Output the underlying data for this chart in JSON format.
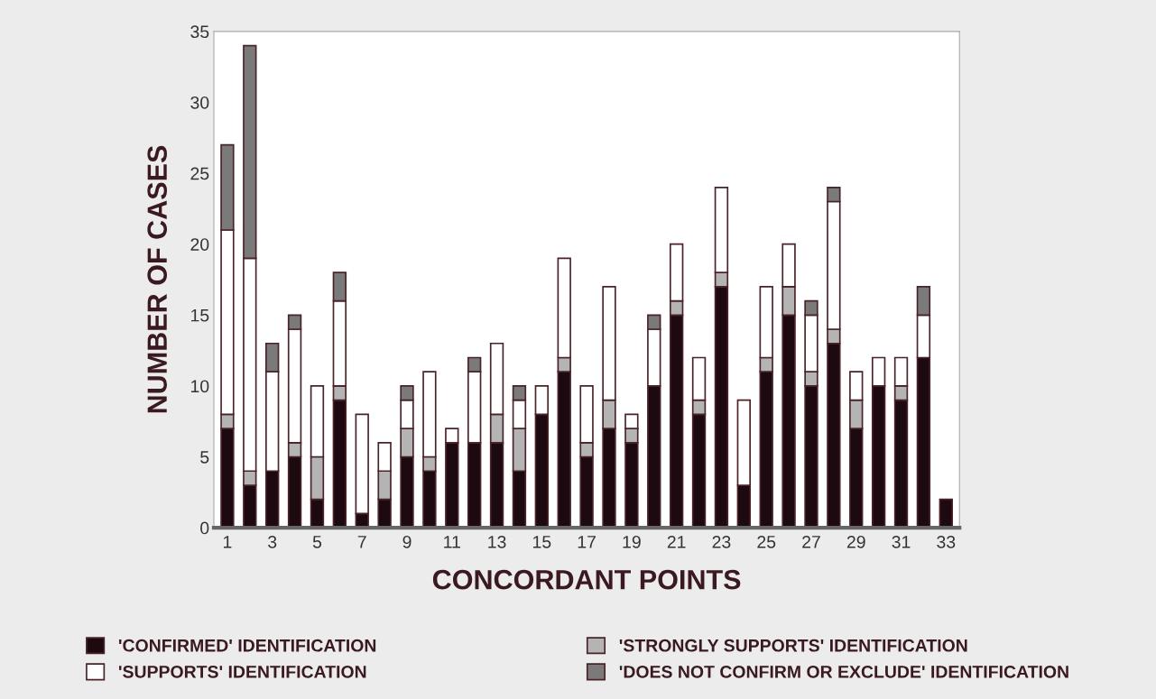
{
  "chart_data": {
    "type": "bar",
    "stacked": true,
    "xlabel": "CONCORDANT POINTS",
    "ylabel": "NUMBER OF CASES",
    "categories": [
      "1",
      null,
      "3",
      null,
      "5",
      null,
      "7",
      null,
      "9",
      null,
      "11",
      null,
      "13",
      null,
      "15",
      null,
      "17",
      null,
      "19",
      null,
      "21",
      null,
      "23",
      null,
      "25",
      null,
      "27",
      null,
      "29",
      null,
      "31",
      null,
      "33"
    ],
    "series": [
      {
        "name": "'CONFIRMED' IDENTIFICATION",
        "color": "#1c0a10",
        "values": [
          7,
          3,
          4,
          5,
          2,
          9,
          1,
          2,
          5,
          4,
          6,
          6,
          6,
          4,
          8,
          11,
          5,
          7,
          6,
          10,
          15,
          8,
          17,
          3,
          11,
          15,
          10,
          13,
          7,
          10,
          9,
          12,
          2
        ]
      },
      {
        "name": "'STRONGLY SUPPORTS' IDENTIFICATION",
        "color": "#b4b4b4",
        "values": [
          1,
          1,
          0,
          1,
          3,
          1,
          0,
          2,
          2,
          1,
          0,
          0,
          2,
          3,
          0,
          1,
          1,
          2,
          1,
          0,
          1,
          1,
          1,
          0,
          1,
          2,
          1,
          1,
          2,
          0,
          1,
          0,
          0
        ]
      },
      {
        "name": "'SUPPORTS' IDENTIFICATION",
        "color": "#ffffff",
        "values": [
          13,
          15,
          7,
          8,
          5,
          6,
          7,
          2,
          2,
          6,
          1,
          5,
          5,
          2,
          2,
          7,
          4,
          8,
          1,
          4,
          4,
          3,
          6,
          6,
          5,
          3,
          4,
          9,
          2,
          2,
          2,
          3,
          0
        ]
      },
      {
        "name": "'DOES NOT CONFIRM OR EXCLUDE' IDENTIFICATION",
        "color": "#7a7a7a",
        "values": [
          6,
          15,
          2,
          1,
          0,
          2,
          0,
          0,
          1,
          0,
          0,
          1,
          0,
          1,
          0,
          0,
          0,
          0,
          0,
          1,
          0,
          0,
          0,
          0,
          0,
          0,
          1,
          1,
          0,
          0,
          0,
          2,
          0
        ]
      }
    ],
    "ylim": [
      0,
      35
    ],
    "yticks": [
      0,
      5,
      10,
      15,
      20,
      25,
      30,
      35
    ],
    "grid": false,
    "legend": "bottom"
  }
}
